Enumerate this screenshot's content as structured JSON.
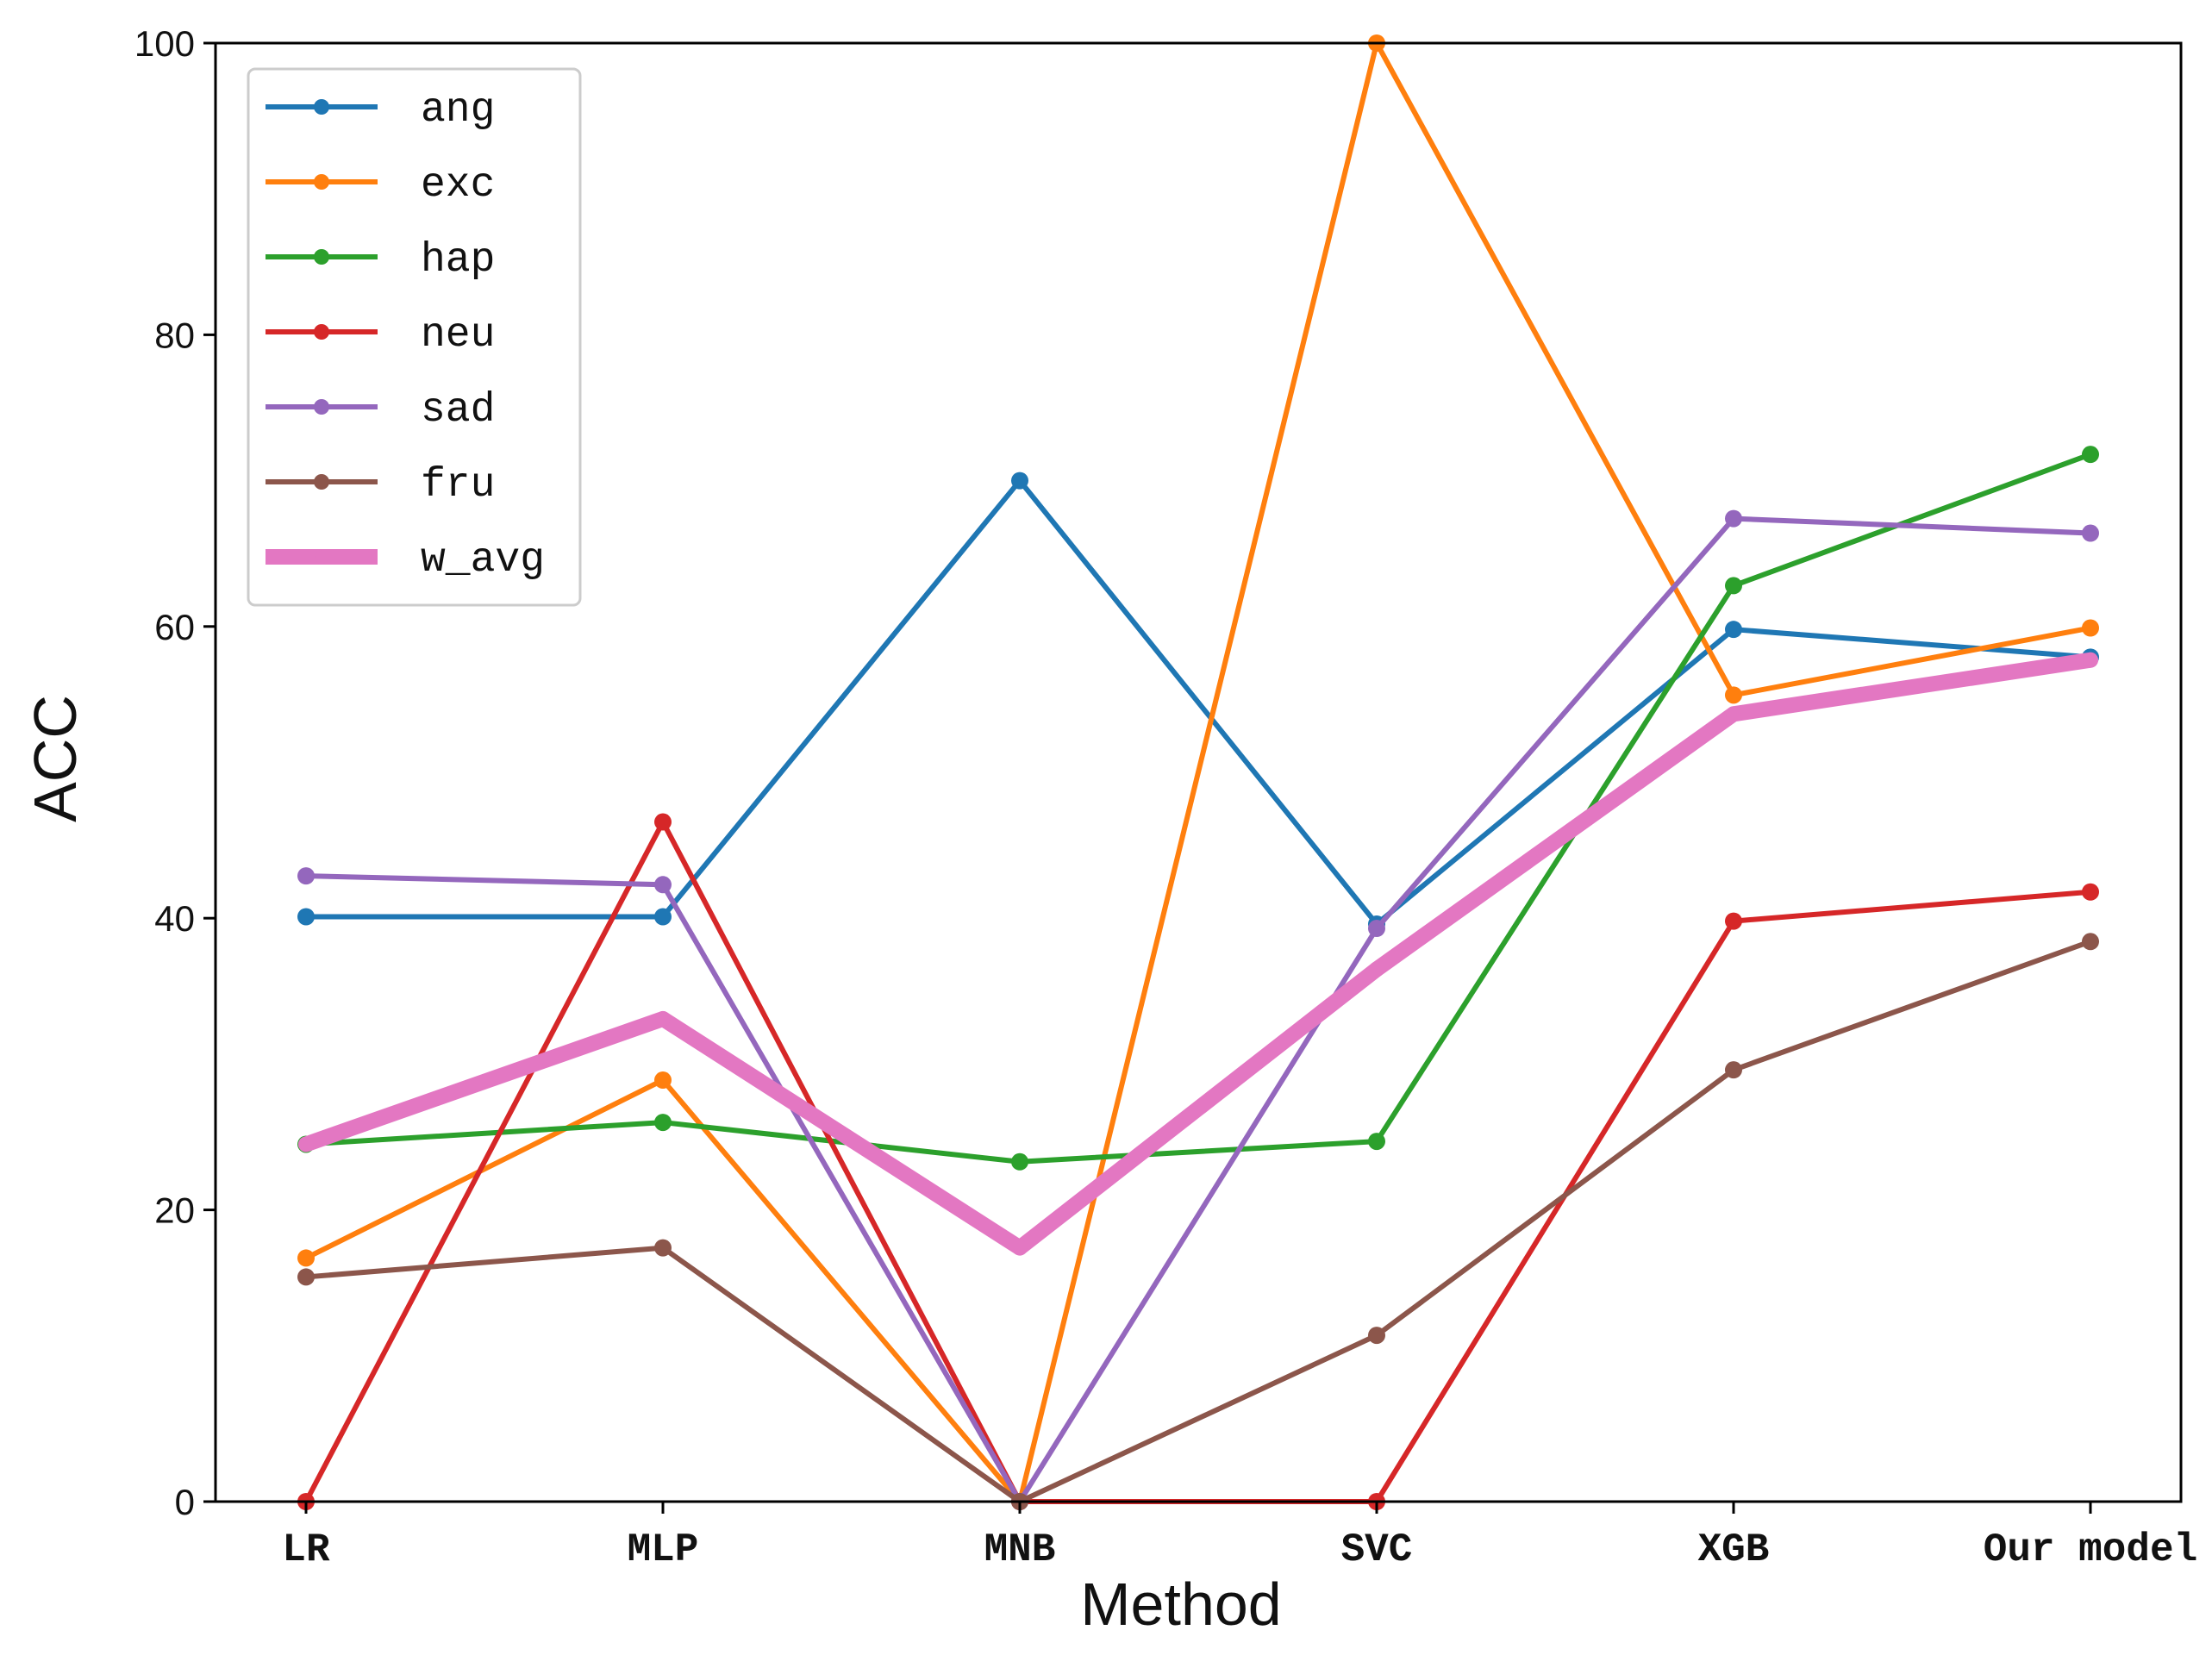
{
  "chart_data": {
    "type": "line",
    "title": "",
    "xlabel": "Method",
    "ylabel": "ACC",
    "categories": [
      "LR",
      "MLP",
      "MNB",
      "SVC",
      "XGB",
      "Our model"
    ],
    "ylim": [
      0,
      100
    ],
    "yticks": [
      0,
      20,
      40,
      60,
      80,
      100
    ],
    "grid": false,
    "legend_position": "top-left",
    "series": [
      {
        "name": "ang",
        "color": "#1f77b4",
        "values": [
          40.1,
          40.1,
          70.0,
          39.6,
          59.8,
          57.9
        ]
      },
      {
        "name": "exc",
        "color": "#ff7f0e",
        "values": [
          16.7,
          28.9,
          0.0,
          100.0,
          55.3,
          59.9
        ]
      },
      {
        "name": "hap",
        "color": "#2ca02c",
        "values": [
          24.5,
          26.0,
          23.3,
          24.7,
          62.8,
          71.8
        ]
      },
      {
        "name": "neu",
        "color": "#d62728",
        "values": [
          0.0,
          46.6,
          0.0,
          0.0,
          39.8,
          41.8
        ]
      },
      {
        "name": "sad",
        "color": "#9467bd",
        "values": [
          42.9,
          42.3,
          0.0,
          39.3,
          67.4,
          66.4
        ]
      },
      {
        "name": "fru",
        "color": "#8c564b",
        "values": [
          15.4,
          17.4,
          0.0,
          11.4,
          29.6,
          38.4
        ]
      },
      {
        "name": "w_avg",
        "color": "#e377c2",
        "values": [
          24.5,
          33.1,
          17.4,
          36.5,
          54.0,
          57.7
        ],
        "thick": true
      }
    ]
  }
}
